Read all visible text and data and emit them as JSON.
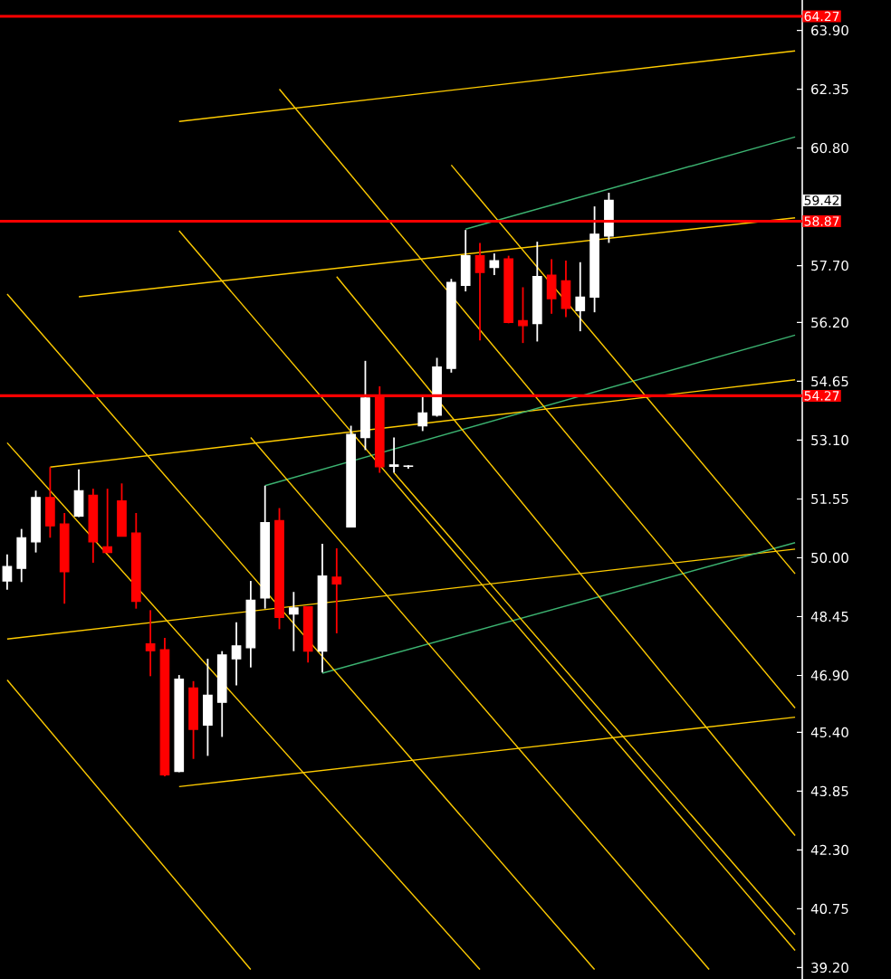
{
  "chart_data": {
    "type": "candlestick",
    "categories": [
      null,
      null,
      null,
      null,
      null,
      null,
      null,
      null,
      null,
      null,
      null,
      null,
      null,
      null,
      null,
      null,
      null,
      null,
      null,
      null,
      null,
      null,
      null,
      null,
      null,
      null,
      null,
      null,
      null,
      null,
      null,
      null,
      null,
      null,
      null,
      null,
      null,
      null,
      null,
      null,
      null,
      null,
      null,
      null,
      null,
      null,
      null,
      null,
      null,
      null,
      null,
      null,
      null,
      null,
      null,
      null
    ],
    "ohlc": [
      [
        49.39,
        50.09,
        49.16,
        49.77
      ],
      [
        49.72,
        50.76,
        49.36,
        50.53
      ],
      [
        50.42,
        51.77,
        50.14,
        51.59
      ],
      [
        51.59,
        52.39,
        50.53,
        50.84
      ],
      [
        50.89,
        51.18,
        48.79,
        49.63
      ],
      [
        51.1,
        52.33,
        51.07,
        51.77
      ],
      [
        51.65,
        51.82,
        49.87,
        50.42
      ],
      [
        50.29,
        51.82,
        50.12,
        50.14
      ],
      [
        51.5,
        51.96,
        50.56,
        50.57
      ],
      [
        50.65,
        51.18,
        48.66,
        48.85
      ],
      [
        47.73,
        48.62,
        46.88,
        47.55
      ],
      [
        47.58,
        47.89,
        44.24,
        44.28
      ],
      [
        44.37,
        46.91,
        44.35,
        46.8
      ],
      [
        46.57,
        46.75,
        44.7,
        45.48
      ],
      [
        45.59,
        47.34,
        44.78,
        46.38
      ],
      [
        46.19,
        47.54,
        45.28,
        47.44
      ],
      [
        47.34,
        48.3,
        46.64,
        47.68
      ],
      [
        47.63,
        49.39,
        47.11,
        48.88
      ],
      [
        48.94,
        51.9,
        48.66,
        50.93
      ],
      [
        50.98,
        51.31,
        48.12,
        48.43
      ],
      [
        48.52,
        49.1,
        47.54,
        48.68
      ],
      [
        48.71,
        48.72,
        47.24,
        47.54
      ],
      [
        47.54,
        50.37,
        46.98,
        49.52
      ],
      [
        49.49,
        50.25,
        48.01,
        49.31
      ],
      [
        50.81,
        53.48,
        50.8,
        53.25
      ],
      [
        53.17,
        55.19,
        52.84,
        54.21
      ],
      [
        54.26,
        54.52,
        52.24,
        52.4
      ],
      [
        52.41,
        53.17,
        52.24,
        52.45
      ],
      [
        52.41,
        52.44,
        52.35,
        52.42
      ],
      [
        53.48,
        54.26,
        53.34,
        53.82
      ],
      [
        53.76,
        55.27,
        53.72,
        55.03
      ],
      [
        54.99,
        57.35,
        54.88,
        57.26
      ],
      [
        57.18,
        58.64,
        57.02,
        57.96
      ],
      [
        57.96,
        58.3,
        55.73,
        57.52
      ],
      [
        57.65,
        58.02,
        57.45,
        57.83
      ],
      [
        57.88,
        57.96,
        56.18,
        56.2
      ],
      [
        56.25,
        57.13,
        55.66,
        56.12
      ],
      [
        56.17,
        58.33,
        55.7,
        57.41
      ],
      [
        57.45,
        57.87,
        56.43,
        56.83
      ],
      [
        57.3,
        57.83,
        56.34,
        56.57
      ],
      [
        56.51,
        57.79,
        55.97,
        56.87
      ],
      [
        56.87,
        59.26,
        56.47,
        58.53
      ],
      [
        58.48,
        59.62,
        58.3,
        59.42
      ],
      null,
      null,
      null,
      null,
      null,
      null,
      null,
      null,
      null,
      null,
      null,
      null,
      null
    ],
    "series": [
      {
        "type": "line",
        "color": "#ffcc00",
        "values": [
          null,
          null,
          null,
          null,
          null,
          null,
          null,
          null,
          null,
          null,
          null,
          null,
          61.5,
          null,
          null,
          null,
          null,
          null,
          null,
          null,
          null,
          null,
          null,
          null,
          null,
          null,
          null,
          null,
          null,
          null,
          null,
          null,
          null,
          null,
          null,
          null,
          null,
          null,
          null,
          null,
          null,
          null,
          null,
          null,
          null,
          null,
          null,
          null,
          null,
          null,
          null,
          null,
          null,
          null,
          null,
          63.36
        ]
      },
      {
        "type": "line",
        "color": "#ffcc00",
        "values": [
          null,
          null,
          null,
          52.39,
          null,
          null,
          null,
          null,
          null,
          null,
          null,
          null,
          null,
          null,
          null,
          null,
          null,
          null,
          null,
          null,
          null,
          null,
          null,
          null,
          null,
          null,
          null,
          null,
          null,
          null,
          null,
          null,
          null,
          null,
          null,
          null,
          null,
          null,
          null,
          null,
          null,
          null,
          null,
          null,
          null,
          null,
          null,
          null,
          null,
          null,
          null,
          null,
          null,
          null,
          null,
          54.69
        ]
      },
      {
        "type": "line",
        "color": "#ffcc00",
        "values": [
          47.86,
          null,
          null,
          null,
          null,
          null,
          null,
          null,
          null,
          null,
          null,
          null,
          null,
          null,
          null,
          null,
          null,
          null,
          null,
          null,
          null,
          null,
          null,
          null,
          null,
          null,
          null,
          null,
          null,
          null,
          null,
          null,
          null,
          null,
          null,
          null,
          null,
          null,
          null,
          null,
          null,
          null,
          null,
          null,
          null,
          null,
          null,
          null,
          null,
          null,
          null,
          null,
          null,
          null,
          null,
          50.23
        ]
      },
      {
        "type": "line",
        "color": "#ffcc00",
        "values": [
          null,
          null,
          null,
          null,
          null,
          null,
          null,
          null,
          null,
          null,
          null,
          null,
          43.97,
          null,
          null,
          null,
          null,
          null,
          null,
          null,
          null,
          null,
          null,
          null,
          null,
          null,
          null,
          null,
          null,
          null,
          null,
          null,
          null,
          null,
          null,
          null,
          null,
          null,
          null,
          null,
          null,
          null,
          null,
          null,
          null,
          null,
          null,
          null,
          null,
          null,
          null,
          null,
          null,
          null,
          null,
          45.8
        ]
      },
      {
        "type": "line",
        "color": "#ffcc00",
        "values": [
          null,
          null,
          null,
          null,
          null,
          56.88,
          null,
          null,
          null,
          null,
          null,
          null,
          null,
          null,
          null,
          null,
          null,
          null,
          null,
          null,
          null,
          null,
          null,
          null,
          null,
          null,
          null,
          null,
          null,
          null,
          null,
          null,
          null,
          null,
          null,
          null,
          null,
          null,
          null,
          null,
          null,
          null,
          null,
          null,
          null,
          null,
          null,
          null,
          null,
          null,
          null,
          null,
          null,
          null,
          null,
          58.96
        ]
      },
      {
        "type": "line",
        "color": "#3cb371",
        "values": [
          null,
          null,
          null,
          null,
          null,
          null,
          null,
          null,
          null,
          null,
          null,
          null,
          null,
          null,
          null,
          null,
          null,
          null,
          null,
          null,
          null,
          null,
          null,
          null,
          null,
          null,
          null,
          null,
          null,
          null,
          null,
          null,
          58.66,
          null,
          null,
          null,
          null,
          null,
          null,
          null,
          null,
          null,
          null,
          null,
          null,
          null,
          null,
          null,
          null,
          null,
          null,
          null,
          null,
          null,
          null,
          61.09
        ]
      },
      {
        "type": "line",
        "color": "#3cb371",
        "values": [
          null,
          null,
          null,
          null,
          null,
          null,
          null,
          null,
          null,
          null,
          null,
          null,
          null,
          null,
          null,
          null,
          null,
          null,
          51.9,
          null,
          null,
          null,
          null,
          null,
          null,
          null,
          null,
          null,
          null,
          null,
          null,
          null,
          null,
          null,
          null,
          null,
          null,
          null,
          null,
          null,
          null,
          null,
          null,
          null,
          null,
          null,
          null,
          null,
          null,
          null,
          null,
          null,
          null,
          null,
          null,
          55.87
        ]
      },
      {
        "type": "line",
        "color": "#3cb371",
        "values": [
          null,
          null,
          null,
          null,
          null,
          null,
          null,
          null,
          null,
          null,
          null,
          null,
          null,
          null,
          null,
          null,
          null,
          null,
          null,
          null,
          null,
          null,
          46.96,
          null,
          null,
          null,
          null,
          null,
          null,
          null,
          null,
          null,
          null,
          null,
          null,
          null,
          null,
          null,
          null,
          null,
          null,
          null,
          null,
          null,
          null,
          null,
          null,
          null,
          null,
          null,
          null,
          null,
          null,
          null,
          null,
          50.4
        ]
      },
      {
        "type": "line",
        "color": "#ffcc00",
        "values": [
          null,
          null,
          null,
          null,
          null,
          null,
          null,
          null,
          null,
          null,
          null,
          null,
          null,
          null,
          null,
          null,
          null,
          null,
          null,
          62.35,
          null,
          null,
          null,
          null,
          null,
          null,
          null,
          null,
          null,
          null,
          null,
          null,
          null,
          null,
          null,
          null,
          null,
          null,
          null,
          null,
          null,
          null,
          null,
          null,
          null,
          null,
          null,
          null,
          null,
          null,
          null,
          null,
          null,
          null,
          null,
          46.04
        ]
      },
      {
        "type": "line",
        "color": "#ffcc00",
        "values": [
          null,
          null,
          null,
          null,
          null,
          null,
          null,
          null,
          null,
          null,
          null,
          null,
          null,
          null,
          null,
          null,
          null,
          null,
          null,
          null,
          null,
          null,
          null,
          null,
          null,
          null,
          null,
          null,
          null,
          null,
          null,
          60.35,
          null,
          null,
          null,
          null,
          null,
          null,
          null,
          null,
          null,
          null,
          null,
          null,
          null,
          null,
          null,
          null,
          null,
          null,
          null,
          null,
          null,
          null,
          null,
          49.58
        ]
      },
      {
        "type": "line",
        "color": "#ffcc00",
        "values": [
          null,
          null,
          null,
          null,
          null,
          null,
          null,
          null,
          null,
          null,
          null,
          null,
          58.62,
          null,
          null,
          null,
          null,
          null,
          null,
          null,
          null,
          null,
          null,
          null,
          null,
          null,
          null,
          null,
          null,
          null,
          null,
          null,
          null,
          null,
          null,
          null,
          null,
          null,
          null,
          null,
          null,
          null,
          null,
          null,
          null,
          null,
          null,
          null,
          null,
          null,
          null,
          null,
          null,
          null,
          null,
          39.65
        ]
      },
      {
        "type": "line",
        "color": "#ffcc00",
        "values": [
          56.95,
          null,
          null,
          null,
          null,
          null,
          null,
          null,
          null,
          null,
          null,
          null,
          null,
          null,
          null,
          null,
          null,
          null,
          null,
          null,
          null,
          null,
          null,
          null,
          null,
          null,
          null,
          null,
          null,
          null,
          null,
          null,
          null,
          null,
          null,
          null,
          null,
          null,
          null,
          null,
          null,
          39.15,
          null,
          null,
          null,
          null,
          null,
          null,
          null,
          null,
          null,
          null,
          null,
          null,
          null,
          null
        ]
      },
      {
        "type": "line",
        "color": "#ffcc00",
        "values": [
          null,
          null,
          null,
          null,
          null,
          null,
          null,
          null,
          null,
          null,
          null,
          null,
          null,
          null,
          null,
          null,
          null,
          53.17,
          null,
          null,
          null,
          null,
          null,
          null,
          null,
          null,
          null,
          null,
          null,
          null,
          null,
          null,
          null,
          null,
          null,
          null,
          null,
          null,
          null,
          null,
          null,
          null,
          null,
          null,
          null,
          null,
          null,
          null,
          null,
          39.15,
          null,
          null,
          null,
          null,
          null,
          null
        ]
      },
      {
        "type": "line",
        "color": "#ffcc00",
        "values": [
          53.03,
          null,
          null,
          null,
          null,
          null,
          null,
          null,
          null,
          null,
          null,
          null,
          null,
          null,
          null,
          null,
          null,
          null,
          null,
          null,
          null,
          null,
          null,
          null,
          null,
          null,
          null,
          null,
          null,
          null,
          null,
          null,
          null,
          39.15,
          null,
          null,
          null,
          null,
          null,
          null,
          null,
          null,
          null,
          null,
          null,
          null,
          null,
          null,
          null,
          null,
          null,
          null,
          null,
          null,
          null,
          null
        ]
      },
      {
        "type": "line",
        "color": "#ffcc00",
        "values": [
          46.78,
          null,
          null,
          null,
          null,
          null,
          null,
          null,
          null,
          null,
          null,
          null,
          null,
          null,
          null,
          null,
          null,
          39.15,
          null,
          null,
          null,
          null,
          null,
          null,
          null,
          null,
          null,
          null,
          null,
          null,
          null,
          null,
          null,
          null,
          null,
          null,
          null,
          null,
          null,
          null,
          null,
          null,
          null,
          null,
          null,
          null,
          null,
          null,
          null,
          null,
          null,
          null,
          null,
          null,
          null,
          null
        ]
      },
      {
        "type": "line",
        "color": "#ffcc00",
        "values": [
          null,
          null,
          null,
          null,
          null,
          null,
          null,
          null,
          null,
          null,
          null,
          null,
          null,
          null,
          null,
          null,
          null,
          null,
          null,
          null,
          null,
          null,
          null,
          null,
          null,
          null,
          null,
          52.24,
          null,
          null,
          null,
          null,
          null,
          null,
          null,
          null,
          null,
          null,
          null,
          null,
          null,
          null,
          null,
          null,
          null,
          null,
          null,
          null,
          null,
          null,
          null,
          null,
          null,
          null,
          null,
          40.07
        ]
      },
      {
        "type": "line",
        "color": "#ffcc00",
        "values": [
          null,
          null,
          null,
          null,
          null,
          null,
          null,
          null,
          null,
          null,
          null,
          null,
          null,
          null,
          null,
          null,
          null,
          null,
          null,
          null,
          null,
          null,
          null,
          57.41,
          null,
          null,
          null,
          null,
          null,
          null,
          null,
          null,
          null,
          null,
          null,
          null,
          null,
          null,
          null,
          null,
          null,
          null,
          null,
          null,
          null,
          null,
          null,
          null,
          null,
          null,
          null,
          null,
          null,
          null,
          null,
          42.68
        ]
      }
    ],
    "ylim": [
      38.9,
      64.7
    ],
    "yticks": [
      {
        "value": 63.9,
        "label": "63.90"
      },
      {
        "value": 62.35,
        "label": "62.35"
      },
      {
        "value": 60.8,
        "label": "60.80"
      },
      {
        "value": 57.7,
        "label": "57.70"
      },
      {
        "value": 56.2,
        "label": "56.20"
      },
      {
        "value": 54.65,
        "label": "54.65"
      },
      {
        "value": 53.1,
        "label": "53.10"
      },
      {
        "value": 51.55,
        "label": "51.55"
      },
      {
        "value": 50.0,
        "label": "50.00"
      },
      {
        "value": 48.45,
        "label": "48.45"
      },
      {
        "value": 46.9,
        "label": "46.90"
      },
      {
        "value": 45.4,
        "label": "45.40"
      },
      {
        "value": 43.85,
        "label": "43.85"
      },
      {
        "value": 42.3,
        "label": "42.30"
      },
      {
        "value": 40.75,
        "label": "40.75"
      },
      {
        "value": 39.2,
        "label": "39.20"
      }
    ],
    "ref_lines": [
      {
        "axis": "y",
        "value": 64.27,
        "label": "64.27",
        "color": "#ff0000"
      },
      {
        "axis": "y",
        "value": 58.87,
        "label": "58.87",
        "color": "#ff0000"
      },
      {
        "axis": "y",
        "value": 54.27,
        "label": "54.27",
        "color": "#ff0000"
      }
    ],
    "annotations": [
      {
        "text": "59.42",
        "y": 59.42
      }
    ],
    "tick_labels": "y"
  }
}
